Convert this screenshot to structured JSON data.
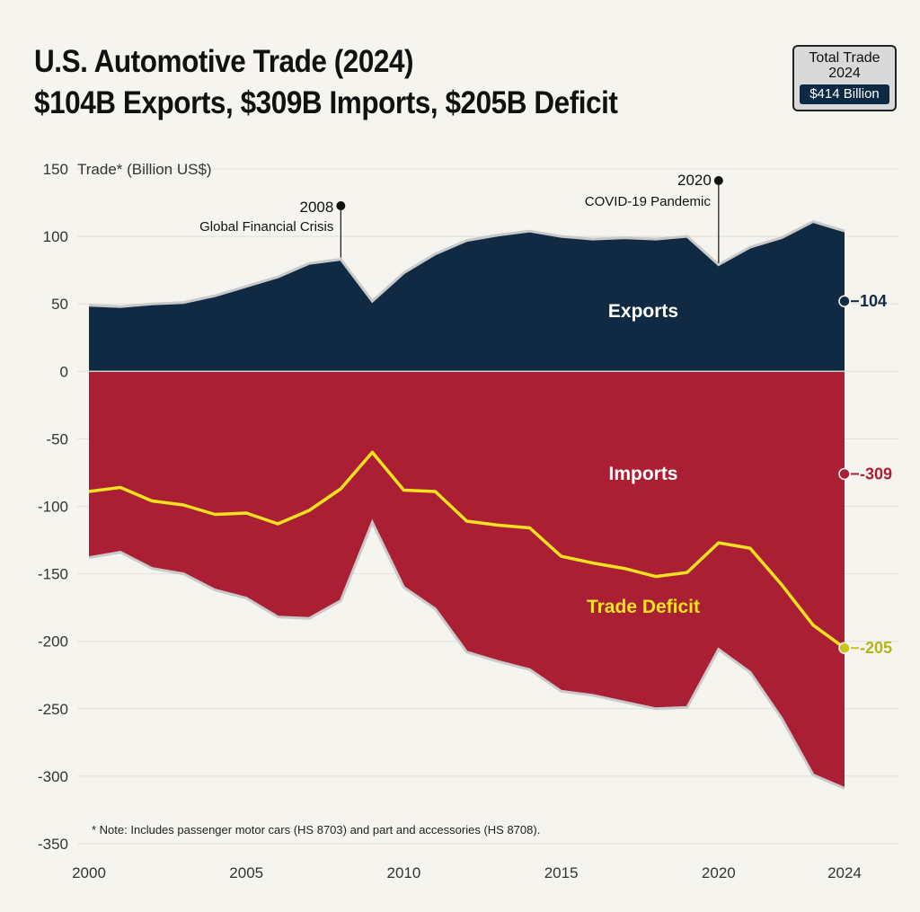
{
  "header": {
    "title_line1": "U.S. Automotive Trade (2024)",
    "title_line2": "$104B Exports, $309B Imports, $205B Deficit"
  },
  "badge": {
    "line1": "Total Trade",
    "line2": "2024",
    "value": "$414 Billion"
  },
  "chart_data": {
    "type": "area",
    "ylabel": "Trade* (Billion US$)",
    "ylim": [
      -350,
      150
    ],
    "yticks": [
      150,
      100,
      50,
      0,
      -50,
      -100,
      -150,
      -200,
      -250,
      -300,
      -350
    ],
    "xlim": [
      2000,
      2024
    ],
    "xticks": [
      2000,
      2005,
      2010,
      2015,
      2020,
      2024
    ],
    "x": [
      2000,
      2001,
      2002,
      2003,
      2004,
      2005,
      2006,
      2007,
      2008,
      2009,
      2010,
      2011,
      2012,
      2013,
      2014,
      2015,
      2016,
      2017,
      2018,
      2019,
      2020,
      2021,
      2022,
      2023,
      2024
    ],
    "series": [
      {
        "name": "Exports",
        "color": "#0f2a42",
        "values": [
          49,
          48,
          50,
          51,
          56,
          63,
          70,
          80,
          83,
          52,
          73,
          87,
          97,
          101,
          104,
          100,
          98,
          99,
          98,
          100,
          79,
          92,
          99,
          111,
          104
        ]
      },
      {
        "name": "Imports",
        "color": "#ab1f35",
        "values": [
          -138,
          -134,
          -146,
          -150,
          -162,
          -168,
          -182,
          -183,
          -170,
          -112,
          -160,
          -176,
          -208,
          -215,
          -221,
          -237,
          -240,
          -245,
          -250,
          -249,
          -206,
          -223,
          -257,
          -299,
          -309
        ]
      },
      {
        "name": "Trade Deficit",
        "color": "#f3e21f",
        "values": [
          -89,
          -86,
          -96,
          -99,
          -106,
          -105,
          -113,
          -103,
          -87,
          -60,
          -88,
          -89,
          -111,
          -114,
          -116,
          -137,
          -142,
          -146,
          -152,
          -149,
          -127,
          -131,
          -158,
          -188,
          -205
        ]
      }
    ],
    "area_labels": {
      "exports": "Exports",
      "imports": "Imports",
      "deficit": "Trade Deficit"
    },
    "end_labels": {
      "exports": "104",
      "imports": "-309",
      "deficit": "-205"
    },
    "annotations": [
      {
        "year": "2008",
        "text": "Global Financial Crisis"
      },
      {
        "year": "2020",
        "text": "COVID-19 Pandemic"
      }
    ],
    "note": "* Note: Includes passenger motor cars (HS 8703) and part and accessories (HS 8708)."
  }
}
